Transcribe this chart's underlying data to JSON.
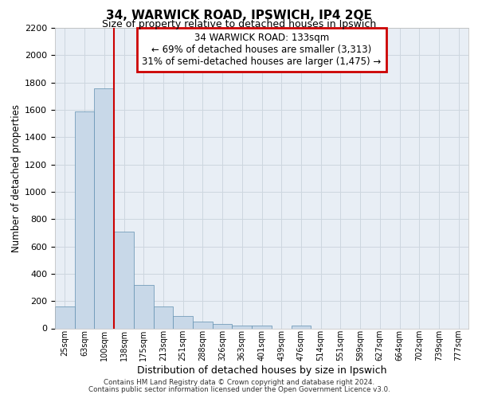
{
  "title_line1": "34, WARWICK ROAD, IPSWICH, IP4 2QE",
  "title_line2": "Size of property relative to detached houses in Ipswich",
  "xlabel": "Distribution of detached houses by size in Ipswich",
  "ylabel": "Number of detached properties",
  "categories": [
    "25sqm",
    "63sqm",
    "100sqm",
    "138sqm",
    "175sqm",
    "213sqm",
    "251sqm",
    "288sqm",
    "326sqm",
    "363sqm",
    "401sqm",
    "439sqm",
    "476sqm",
    "514sqm",
    "551sqm",
    "589sqm",
    "627sqm",
    "664sqm",
    "702sqm",
    "739sqm",
    "777sqm"
  ],
  "values": [
    160,
    1590,
    1760,
    710,
    315,
    160,
    90,
    52,
    32,
    22,
    20,
    0,
    20,
    0,
    0,
    0,
    0,
    0,
    0,
    0,
    0
  ],
  "bar_color": "#c8d8e8",
  "bar_edge_color": "#6090b0",
  "annotation_text": "34 WARWICK ROAD: 133sqm\n← 69% of detached houses are smaller (3,313)\n31% of semi-detached houses are larger (1,475) →",
  "annotation_box_facecolor": "#ffffff",
  "annotation_box_edgecolor": "#cc0000",
  "redline_x": 2.5,
  "grid_color": "#cdd6df",
  "background_color": "#e8eef5",
  "ylim_max": 2200,
  "yticks": [
    0,
    200,
    400,
    600,
    800,
    1000,
    1200,
    1400,
    1600,
    1800,
    2000,
    2200
  ],
  "footer_line1": "Contains HM Land Registry data © Crown copyright and database right 2024.",
  "footer_line2": "Contains public sector information licensed under the Open Government Licence v3.0."
}
